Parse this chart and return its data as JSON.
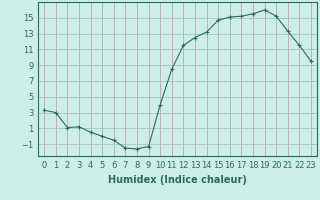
{
  "x": [
    0,
    1,
    2,
    3,
    4,
    5,
    6,
    7,
    8,
    9,
    10,
    11,
    12,
    13,
    14,
    15,
    16,
    17,
    18,
    19,
    20,
    21,
    22,
    23
  ],
  "y": [
    3.3,
    3.0,
    1.1,
    1.2,
    0.5,
    0.0,
    -0.5,
    -1.5,
    -1.6,
    -1.3,
    4.0,
    8.5,
    11.5,
    12.5,
    13.2,
    14.7,
    15.1,
    15.2,
    15.5,
    16.0,
    15.2,
    13.3,
    11.5,
    9.5
  ],
  "line_color": "#2d6b5e",
  "marker": "+",
  "marker_size": 3,
  "background_color": "#cceee8",
  "grid_color_x": "#d0a0a0",
  "grid_color_y": "#a0c8c4",
  "xlabel": "Humidex (Indice chaleur)",
  "xlim": [
    -0.5,
    23.5
  ],
  "ylim": [
    -2.5,
    17
  ],
  "yticks": [
    -1,
    1,
    3,
    5,
    7,
    9,
    11,
    13,
    15
  ],
  "xticks": [
    0,
    1,
    2,
    3,
    4,
    5,
    6,
    7,
    8,
    9,
    10,
    11,
    12,
    13,
    14,
    15,
    16,
    17,
    18,
    19,
    20,
    21,
    22,
    23
  ],
  "tick_label_fontsize": 6,
  "xlabel_fontsize": 7,
  "label_color": "#2d6b5e"
}
